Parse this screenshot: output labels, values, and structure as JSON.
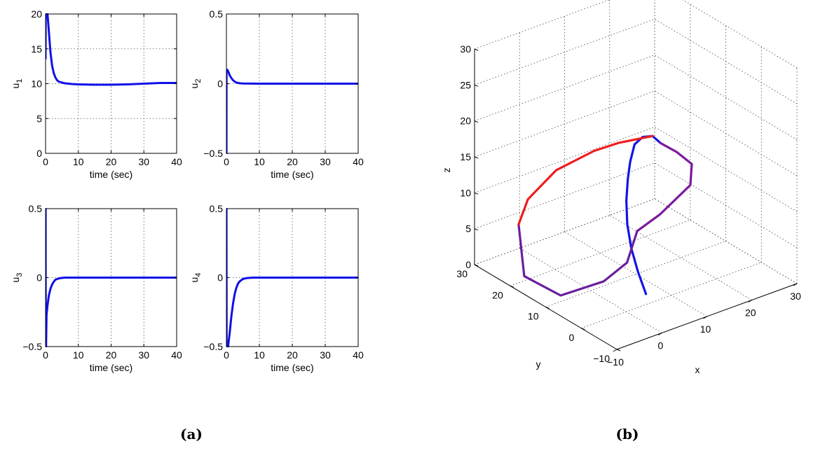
{
  "chart_data": [
    {
      "type": "line",
      "xlabel": "time (sec)",
      "ylabel": "u",
      "ylabel_sub": "1",
      "xlim": [
        0,
        40
      ],
      "ylim": [
        0,
        20
      ],
      "xticks": [
        0,
        10,
        20,
        30,
        40
      ],
      "yticks": [
        0,
        5,
        10,
        15,
        20
      ],
      "grid": true,
      "series": [
        {
          "color": "#1010e8",
          "x": [
            0,
            0.05,
            0.3,
            0.6,
            1,
            1.5,
            2,
            2.5,
            3,
            3.5,
            4,
            5,
            6,
            8,
            10,
            15,
            20,
            25,
            30,
            35,
            40
          ],
          "y": [
            13.5,
            20,
            20,
            20,
            17.5,
            14.5,
            12.6,
            11.5,
            10.9,
            10.5,
            10.3,
            10.15,
            10.05,
            9.95,
            9.9,
            9.85,
            9.85,
            9.9,
            10.0,
            10.1,
            10.1
          ]
        }
      ]
    },
    {
      "type": "line",
      "xlabel": "time (sec)",
      "ylabel": "u",
      "ylabel_sub": "2",
      "xlim": [
        0,
        40
      ],
      "ylim": [
        -0.5,
        0.5
      ],
      "xticks": [
        0,
        10,
        20,
        30,
        40
      ],
      "yticks": [
        -0.5,
        0,
        0.5
      ],
      "grid": true,
      "series": [
        {
          "color": "#1010e8",
          "x": [
            0,
            0.02,
            0.05,
            0.3,
            0.7,
            1,
            1.5,
            2,
            2.5,
            3,
            4,
            5,
            10,
            20,
            30,
            40
          ],
          "y": [
            -0.5,
            -0.5,
            0.1,
            0.1,
            0.08,
            0.06,
            0.04,
            0.025,
            0.015,
            0.008,
            0.003,
            0.001,
            0,
            0,
            0,
            0
          ]
        }
      ]
    },
    {
      "type": "line",
      "xlabel": "time (sec)",
      "ylabel": "u",
      "ylabel_sub": "3",
      "xlim": [
        0,
        40
      ],
      "ylim": [
        -0.5,
        0.5
      ],
      "xticks": [
        0,
        10,
        20,
        30,
        40
      ],
      "yticks": [
        -0.5,
        0,
        0.5
      ],
      "grid": true,
      "series": [
        {
          "color": "#1010e8",
          "x": [
            0,
            0.03,
            0.06,
            0.15,
            0.3,
            0.6,
            1,
            1.5,
            2,
            2.5,
            3,
            4,
            5,
            6,
            10,
            20,
            30,
            40
          ],
          "y": [
            0.5,
            0.5,
            -0.5,
            -0.5,
            -0.27,
            -0.2,
            -0.13,
            -0.08,
            -0.05,
            -0.03,
            -0.015,
            -0.006,
            -0.002,
            0,
            0,
            0,
            0,
            0
          ]
        }
      ]
    },
    {
      "type": "line",
      "xlabel": "time (sec)",
      "ylabel": "u",
      "ylabel_sub": "4",
      "xlim": [
        0,
        40
      ],
      "ylim": [
        -0.5,
        0.5
      ],
      "xticks": [
        0,
        10,
        20,
        30,
        40
      ],
      "yticks": [
        -0.5,
        0,
        0.5
      ],
      "grid": true,
      "series": [
        {
          "color": "#1010e8",
          "x": [
            0,
            0.03,
            0.06,
            0.5,
            1,
            1.5,
            2,
            2.5,
            3,
            3.5,
            4,
            5,
            6,
            8,
            10,
            20,
            30,
            40
          ],
          "y": [
            0.5,
            0.5,
            -0.5,
            -0.5,
            -0.4,
            -0.28,
            -0.19,
            -0.12,
            -0.075,
            -0.045,
            -0.028,
            -0.01,
            -0.004,
            0,
            0,
            0,
            0,
            0
          ]
        }
      ]
    },
    {
      "type": "line3d",
      "xlabel": "x",
      "ylabel": "y",
      "zlabel": "z",
      "xlim": [
        -10,
        30
      ],
      "ylim": [
        -10,
        30
      ],
      "zlim": [
        0,
        30
      ],
      "xticks": [
        -10,
        0,
        10,
        20,
        30
      ],
      "yticks": [
        -10,
        0,
        10,
        20,
        30
      ],
      "zticks": [
        0,
        5,
        10,
        15,
        20,
        25,
        30
      ],
      "grid": true,
      "series": [
        {
          "name": "",
          "color": "#1414e6",
          "points": [
            [
              2,
              -3,
              2.9
            ],
            [
              1.4,
              -1.5,
              5.7
            ],
            [
              1.1,
              0,
              8.6
            ],
            [
              1.4,
              1.5,
              11.4
            ],
            [
              2.3,
              2.9,
              14.1
            ],
            [
              3.5,
              4,
              16.5
            ],
            [
              4.5,
              4.6,
              18.5
            ],
            [
              6.1,
              5.4,
              20.3
            ],
            [
              7.6,
              5,
              21.1
            ],
            [
              9,
              4,
              21.2
            ],
            [
              9.8,
              2.8,
              20.4
            ]
          ]
        },
        {
          "name": "",
          "color": "#7a1a9c",
          "points": [
            [
              9.8,
              2.8,
              20.4
            ],
            [
              10.8,
              -0.5,
              19.9
            ],
            [
              10.6,
              -5,
              19.6
            ],
            [
              8.7,
              -7,
              17.7
            ],
            [
              4.3,
              -4.1,
              13.8
            ],
            [
              1.4,
              -1.3,
              11.3
            ]
          ]
        },
        {
          "name": "",
          "color": "#6a1e9e",
          "points": [
            [
              1.4,
              -1.3,
              11.3
            ],
            [
              -6,
              -7.8,
              10.5
            ],
            [
              -14,
              -11.4,
              10.8
            ],
            [
              -25.7,
              -14.1,
              12.3
            ],
            [
              -30.4,
              -9.8,
              14.8
            ],
            [
              -24.7,
              -1,
              18.1
            ]
          ]
        },
        {
          "name": "",
          "color": "#ee1c1c",
          "points": [
            [
              -24.7,
              -1,
              18.1
            ],
            [
              -19.8,
              2.6,
              19.4
            ],
            [
              -10.7,
              6.2,
              20.3
            ],
            [
              -1.3,
              7.4,
              20.5
            ],
            [
              4,
              7.1,
              20.5
            ],
            [
              9,
              4,
              21.2
            ]
          ]
        }
      ]
    }
  ],
  "captions": {
    "left": "(a)",
    "right": "(b)"
  }
}
